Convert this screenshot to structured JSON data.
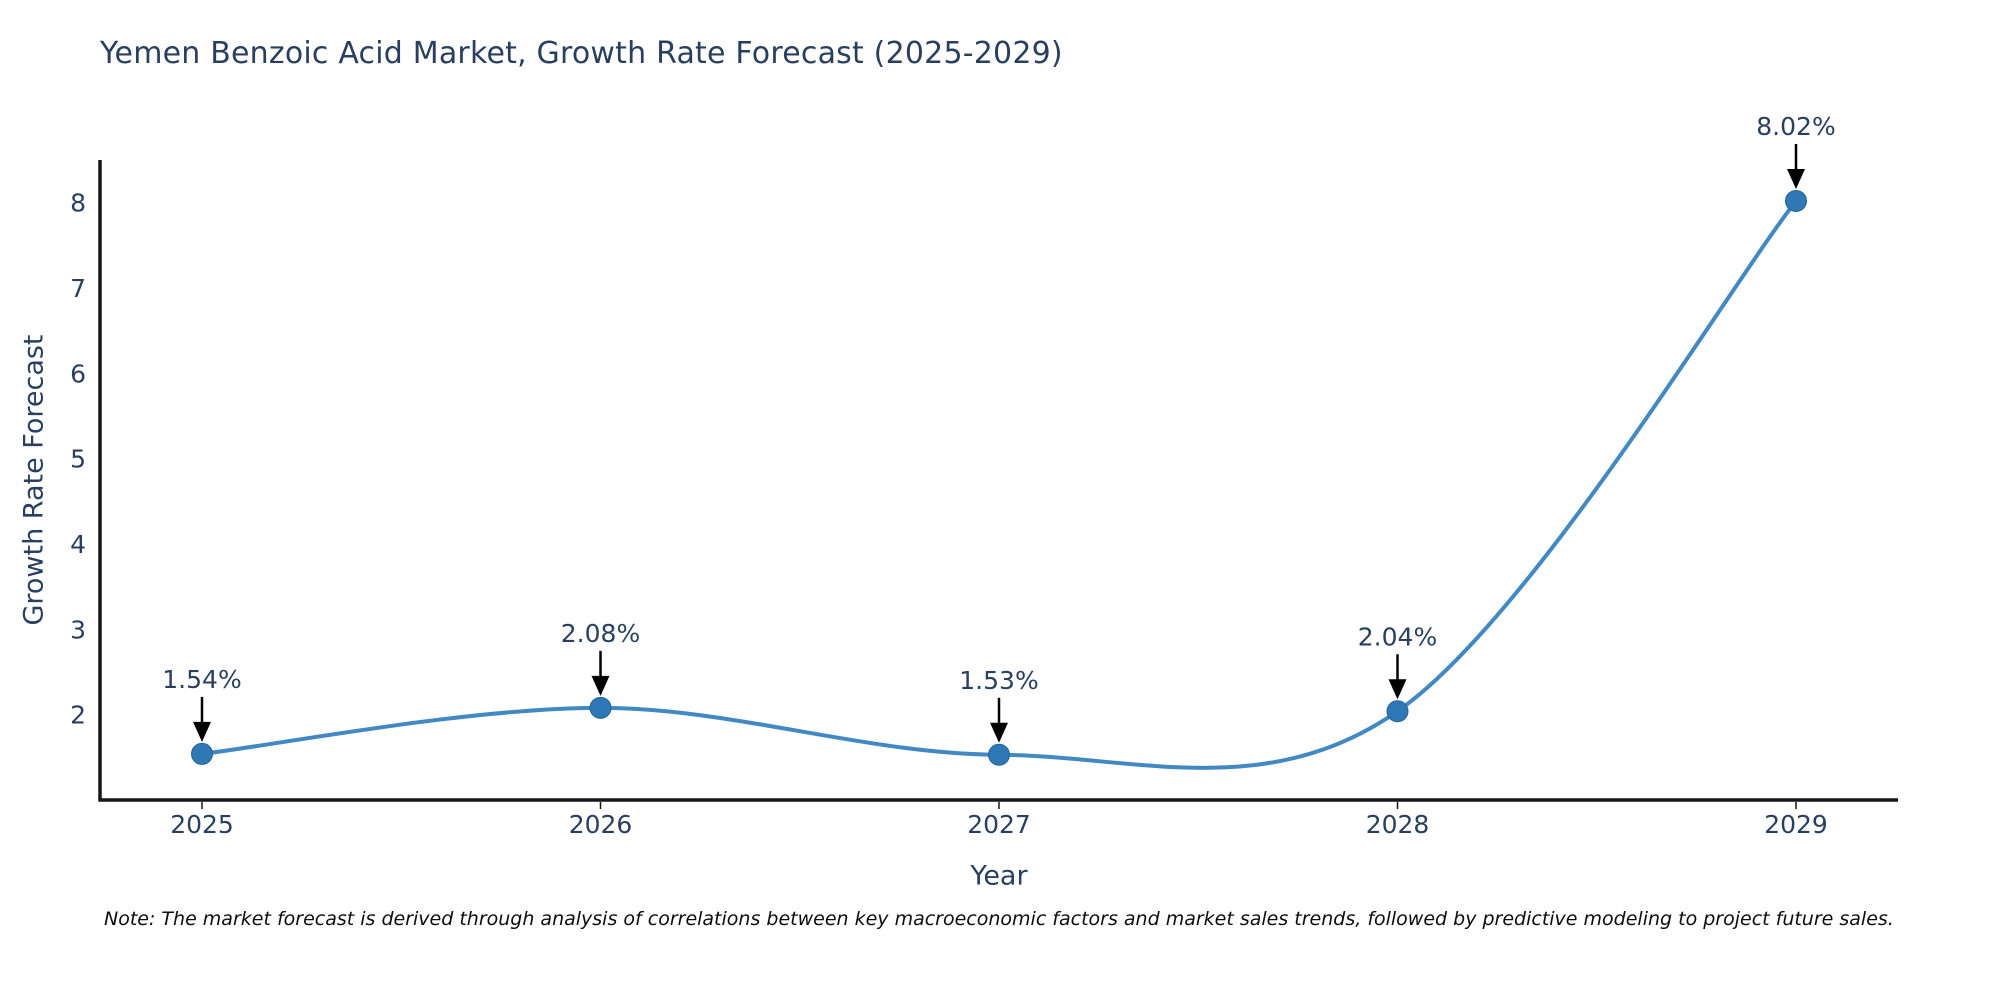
{
  "chart_data": {
    "type": "line",
    "title": "Yemen Benzoic Acid Market, Growth Rate Forecast (2025-2029)",
    "xlabel": "Year",
    "ylabel": "Growth Rate Forecast",
    "categories": [
      "2025",
      "2026",
      "2027",
      "2028",
      "2029"
    ],
    "values": [
      1.54,
      2.08,
      1.53,
      2.04,
      8.02
    ],
    "point_labels": [
      "1.54%",
      "2.08%",
      "1.53%",
      "2.04%",
      "8.02%"
    ],
    "yticks": [
      2,
      3,
      4,
      5,
      6,
      7,
      8
    ],
    "ylim": [
      1.0,
      8.5
    ],
    "line_shape": "spline",
    "grid": false,
    "legend": "none",
    "note": "Note: The market forecast is derived through analysis of correlations between key macroeconomic factors and market sales trends, followed by predictive modeling to project future sales.",
    "colors": {
      "line": "#4288c2",
      "marker": "#2e79b5",
      "marker_edge": "#25628f",
      "axis": "#161616",
      "text": "#2a3f5f",
      "annotation_arrow": "#000000",
      "note_text": "#0d0d0d",
      "background": "#ffffff"
    }
  }
}
